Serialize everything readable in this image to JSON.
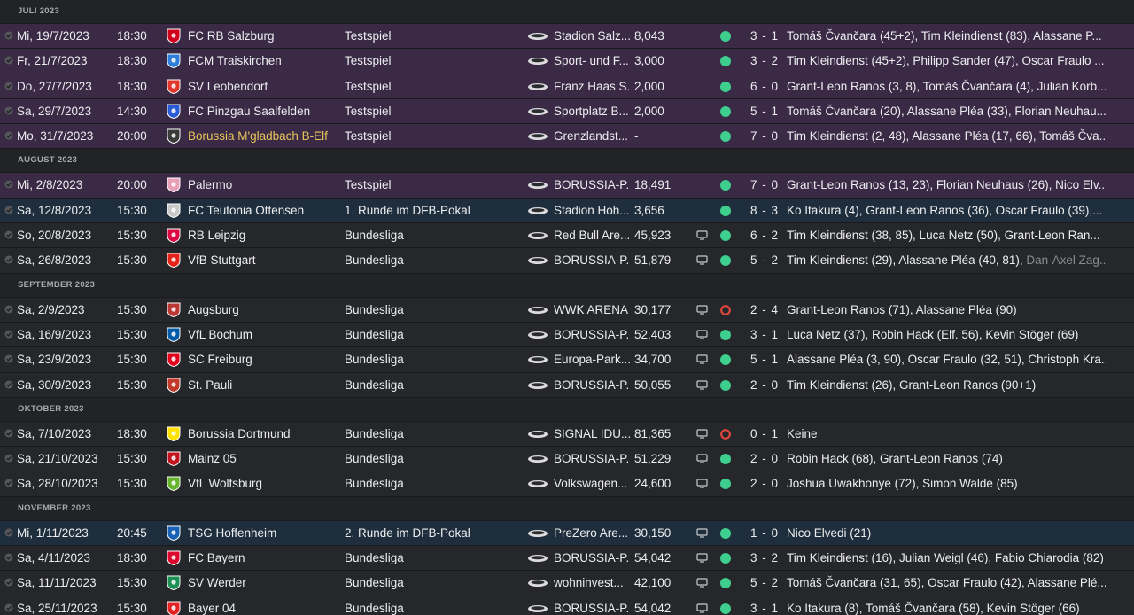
{
  "groups": [
    {
      "month": "JULI 2023",
      "matches": [
        {
          "date": "Mi, 19/7/2023",
          "time": "18:30",
          "opponent": "FC RB Salzburg",
          "crest_color": "#d0021b",
          "competition": "Testspiel",
          "venue": "Stadion Salz...",
          "attendance": "8,043",
          "tv": false,
          "outcome": "win",
          "score": "3 - 1",
          "scorers": "Tomáš Čvančara (45+2), Tim Kleindienst (83), Alassane P...",
          "scorers_dim": "",
          "type": "friendly",
          "highlight": false
        },
        {
          "date": "Fr, 21/7/2023",
          "time": "18:30",
          "opponent": "FCM Traiskirchen",
          "crest_color": "#2e7fd9",
          "competition": "Testspiel",
          "venue": "Sport- und F...",
          "attendance": "3,000",
          "tv": false,
          "outcome": "win",
          "score": "3 - 2",
          "scorers": "Tim Kleindienst (45+2), Philipp Sander (47), Oscar Fraulo ...",
          "scorers_dim": "",
          "type": "friendly",
          "highlight": false
        },
        {
          "date": "Do, 27/7/2023",
          "time": "18:30",
          "opponent": "SV Leobendorf",
          "crest_color": "#e0362b",
          "competition": "Testspiel",
          "venue": "Franz Haas S...",
          "attendance": "2,000",
          "tv": false,
          "outcome": "win",
          "score": "6 - 0",
          "scorers": "Grant-Leon Ranos (3, 8), Tomáš Čvančara (4), Julian Korb...",
          "scorers_dim": "",
          "type": "friendly",
          "highlight": false
        },
        {
          "date": "Sa, 29/7/2023",
          "time": "14:30",
          "opponent": "FC Pinzgau Saalfelden",
          "crest_color": "#2a5bd7",
          "competition": "Testspiel",
          "venue": "Sportplatz B...",
          "attendance": "2,000",
          "tv": false,
          "outcome": "win",
          "score": "5 - 1",
          "scorers": "Tomáš Čvančara (20), Alassane Pléa (33), Florian Neuhau...",
          "scorers_dim": "",
          "type": "friendly",
          "highlight": false
        },
        {
          "date": "Mo, 31/7/2023",
          "time": "20:00",
          "opponent": "Borussia M'gladbach B-Elf",
          "crest_color": "#3a3a3a",
          "competition": "Testspiel",
          "venue": "Grenzlandst...",
          "attendance": "-",
          "tv": false,
          "outcome": "win",
          "score": "7 - 0",
          "scorers": "Tim Kleindienst (2, 48), Alassane Pléa (17, 66), Tomáš Čva...",
          "scorers_dim": "",
          "type": "friendly",
          "highlight": true
        }
      ]
    },
    {
      "month": "AUGUST 2023",
      "matches": [
        {
          "date": "Mi, 2/8/2023",
          "time": "20:00",
          "opponent": "Palermo",
          "crest_color": "#e8a0b8",
          "competition": "Testspiel",
          "venue": "BORUSSIA-P...",
          "attendance": "18,491",
          "tv": false,
          "outcome": "win",
          "score": "7 - 0",
          "scorers": "Grant-Leon Ranos (13, 23), Florian Neuhaus (26), Nico Elv...",
          "scorers_dim": "",
          "type": "friendly",
          "highlight": false
        },
        {
          "date": "Sa, 12/8/2023",
          "time": "15:30",
          "opponent": "FC Teutonia Ottensen",
          "crest_color": "#c8c8c8",
          "competition": "1. Runde im DFB-Pokal",
          "venue": "Stadion Hoh...",
          "attendance": "3,656",
          "tv": false,
          "outcome": "win",
          "score": "8 - 3",
          "scorers": "Ko Itakura (4), Grant-Leon Ranos (36), Oscar Fraulo (39),...",
          "scorers_dim": "",
          "type": "cup",
          "highlight": false
        },
        {
          "date": "So, 20/8/2023",
          "time": "15:30",
          "opponent": "RB Leipzig",
          "crest_color": "#dd0741",
          "competition": "Bundesliga",
          "venue": "Red Bull Are...",
          "attendance": "45,923",
          "tv": true,
          "outcome": "win",
          "score": "6 - 2",
          "scorers": "Tim Kleindienst (38, 85), Luca Netz (50), Grant-Leon Ran...",
          "scorers_dim": "",
          "type": "league",
          "highlight": false
        },
        {
          "date": "Sa, 26/8/2023",
          "time": "15:30",
          "opponent": "VfB Stuttgart",
          "crest_color": "#e32219",
          "competition": "Bundesliga",
          "venue": "BORUSSIA-P...",
          "attendance": "51,879",
          "tv": true,
          "outcome": "win",
          "score": "5 - 2",
          "scorers": "Tim Kleindienst (29), Alassane Pléa (40, 81), ",
          "scorers_dim": "Dan-Axel Zag...",
          "type": "league",
          "highlight": false
        }
      ]
    },
    {
      "month": "SEPTEMBER 2023",
      "matches": [
        {
          "date": "Sa, 2/9/2023",
          "time": "15:30",
          "opponent": "Augsburg",
          "crest_color": "#ba3733",
          "competition": "Bundesliga",
          "venue": "WWK ARENA",
          "attendance": "30,177",
          "tv": true,
          "outcome": "loss",
          "score": "2 - 4",
          "scorers": "Grant-Leon Ranos (71), Alassane Pléa (90)",
          "scorers_dim": "",
          "type": "league",
          "highlight": false
        },
        {
          "date": "Sa, 16/9/2023",
          "time": "15:30",
          "opponent": "VfL Bochum",
          "crest_color": "#005ca9",
          "competition": "Bundesliga",
          "venue": "BORUSSIA-P...",
          "attendance": "52,403",
          "tv": true,
          "outcome": "win",
          "score": "3 - 1",
          "scorers": "Luca Netz (37), Robin Hack (Elf. 56), Kevin Stöger (69)",
          "scorers_dim": "",
          "type": "league",
          "highlight": false
        },
        {
          "date": "Sa, 23/9/2023",
          "time": "15:30",
          "opponent": "SC Freiburg",
          "crest_color": "#e2001a",
          "competition": "Bundesliga",
          "venue": "Europa-Park...",
          "attendance": "34,700",
          "tv": true,
          "outcome": "win",
          "score": "5 - 1",
          "scorers": "Alassane Pléa (3, 90), Oscar Fraulo (32, 51), Christoph Kra...",
          "scorers_dim": "",
          "type": "league",
          "highlight": false
        },
        {
          "date": "Sa, 30/9/2023",
          "time": "15:30",
          "opponent": "St. Pauli",
          "crest_color": "#c0392b",
          "competition": "Bundesliga",
          "venue": "BORUSSIA-P...",
          "attendance": "50,055",
          "tv": true,
          "outcome": "win",
          "score": "2 - 0",
          "scorers": "Tim Kleindienst (26), Grant-Leon Ranos (90+1)",
          "scorers_dim": "",
          "type": "league",
          "highlight": false
        }
      ]
    },
    {
      "month": "OKTOBER 2023",
      "matches": [
        {
          "date": "Sa, 7/10/2023",
          "time": "18:30",
          "opponent": "Borussia Dortmund",
          "crest_color": "#fde100",
          "competition": "Bundesliga",
          "venue": "SIGNAL IDU...",
          "attendance": "81,365",
          "tv": true,
          "outcome": "loss",
          "score": "0 - 1",
          "scorers": "Keine",
          "scorers_dim": "",
          "type": "league",
          "highlight": false
        },
        {
          "date": "Sa, 21/10/2023",
          "time": "15:30",
          "opponent": "Mainz 05",
          "crest_color": "#c3141e",
          "competition": "Bundesliga",
          "venue": "BORUSSIA-P...",
          "attendance": "51,229",
          "tv": true,
          "outcome": "win",
          "score": "2 - 0",
          "scorers": "Robin Hack (68), Grant-Leon Ranos (74)",
          "scorers_dim": "",
          "type": "league",
          "highlight": false
        },
        {
          "date": "Sa, 28/10/2023",
          "time": "15:30",
          "opponent": "VfL Wolfsburg",
          "crest_color": "#65b32e",
          "competition": "Bundesliga",
          "venue": "Volkswagen...",
          "attendance": "24,600",
          "tv": true,
          "outcome": "win",
          "score": "2 - 0",
          "scorers": "Joshua Uwakhonye (72), Simon Walde (85)",
          "scorers_dim": "",
          "type": "league",
          "highlight": false
        }
      ]
    },
    {
      "month": "NOVEMBER 2023",
      "matches": [
        {
          "date": "Mi, 1/11/2023",
          "time": "20:45",
          "opponent": "TSG Hoffenheim",
          "crest_color": "#1961b5",
          "competition": "2. Runde im DFB-Pokal",
          "venue": "PreZero Are...",
          "attendance": "30,150",
          "tv": true,
          "outcome": "win",
          "score": "1 - 0",
          "scorers": "Nico Elvedi (21)",
          "scorers_dim": "",
          "type": "cup",
          "highlight": false
        },
        {
          "date": "Sa, 4/11/2023",
          "time": "18:30",
          "opponent": "FC Bayern",
          "crest_color": "#dc052d",
          "competition": "Bundesliga",
          "venue": "BORUSSIA-P...",
          "attendance": "54,042",
          "tv": true,
          "outcome": "win",
          "score": "3 - 2",
          "scorers": "Tim Kleindienst (16), Julian Weigl (46), Fabio Chiarodia (82)",
          "scorers_dim": "",
          "type": "league",
          "highlight": false
        },
        {
          "date": "Sa, 11/11/2023",
          "time": "15:30",
          "opponent": "SV Werder",
          "crest_color": "#1d9053",
          "competition": "Bundesliga",
          "venue": "wohninvest...",
          "attendance": "42,100",
          "tv": true,
          "outcome": "win",
          "score": "5 - 2",
          "scorers": "Tomáš Čvančara (31, 65), Oscar Fraulo (42), Alassane Plé...",
          "scorers_dim": "",
          "type": "league",
          "highlight": false
        },
        {
          "date": "Sa, 25/11/2023",
          "time": "15:30",
          "opponent": "Bayer 04",
          "crest_color": "#e32221",
          "competition": "Bundesliga",
          "venue": "BORUSSIA-P...",
          "attendance": "54,042",
          "tv": true,
          "outcome": "win",
          "score": "3 - 1",
          "scorers": "Ko Itakura (8), Tomáš Čvančara (58), Kevin Stöger (66)",
          "scorers_dim": "",
          "type": "league",
          "highlight": false
        }
      ]
    }
  ],
  "colors": {
    "win": "#3ecf8e",
    "loss": "#e0473c"
  }
}
